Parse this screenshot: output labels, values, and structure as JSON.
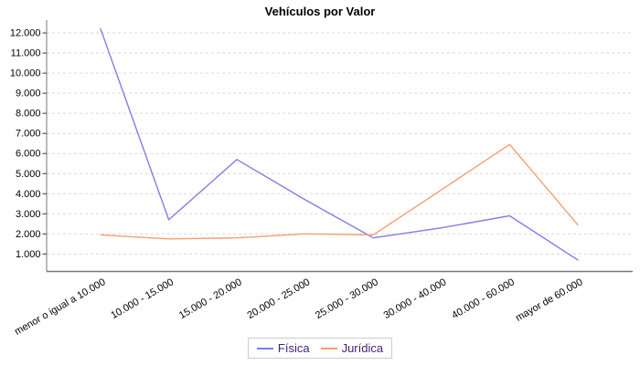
{
  "title": "Vehículos por Valor",
  "chart_data": {
    "type": "line",
    "title": "Vehículos por Valor",
    "categories": [
      "menor o igual a 10.000",
      "10.000 - 15.000",
      "15.000 - 20.000",
      "20.000 - 25.000",
      "25.000 - 30.000",
      "30.000 - 40.000",
      "40.000 - 60.000",
      "mayor de 60.000"
    ],
    "series": [
      {
        "name": "Física",
        "color": "#7e7ee8",
        "values": [
          12200,
          2700,
          5700,
          3700,
          1800,
          2300,
          2900,
          700
        ]
      },
      {
        "name": "Jurídica",
        "color": "#f79e6d",
        "values": [
          1950,
          1750,
          1800,
          2000,
          1950,
          4200,
          6450,
          2450
        ]
      }
    ],
    "y_ticks": [
      1000,
      2000,
      3000,
      4000,
      5000,
      6000,
      7000,
      8000,
      9000,
      10000,
      11000,
      12000
    ],
    "y_tick_labels": [
      "1.000",
      "2.000",
      "3.000",
      "4.000",
      "5.000",
      "6.000",
      "7.000",
      "8.000",
      "9.000",
      "10.000",
      "11.000",
      "12.000"
    ],
    "ylim": [
      130,
      12640
    ],
    "xlabel": "",
    "ylabel": "",
    "grid": "horizontal-dashed",
    "legend_position": "bottom",
    "colors": {
      "grid": "#d9d9d9",
      "axis": "#777777",
      "tick": "#333333",
      "tick_label": "#000000",
      "title": "#000000",
      "legend_text": "#3f1f77",
      "legend_border": "#cccccc"
    }
  }
}
